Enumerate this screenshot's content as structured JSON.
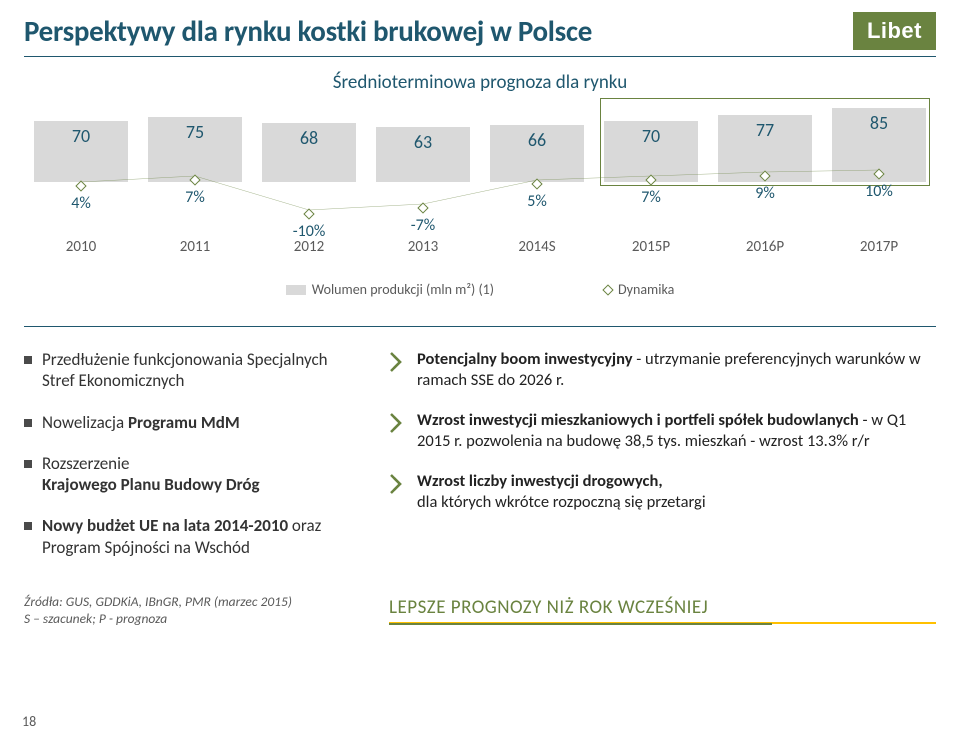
{
  "header": {
    "title": "Perspektywy dla rynku kostki brukowej w Polsce",
    "logo_text": "Libet",
    "logo_bg": "#6a8340",
    "logo_fg": "#ffffff"
  },
  "chart": {
    "subtitle": "Średnioterminowa prognoza dla rynku",
    "type": "bar+line",
    "years": [
      "2010",
      "2011",
      "2012",
      "2013",
      "2014S",
      "2015P",
      "2016P",
      "2017P"
    ],
    "bar_values": [
      70,
      75,
      68,
      63,
      66,
      70,
      77,
      85
    ],
    "bar_max": 85,
    "bar_color": "#d9d9d9",
    "bar_label_color": "#1f576e",
    "bar_label_fontsize": 18,
    "line_values_pct": [
      "4%",
      "7%",
      "-10%",
      "-7%",
      "5%",
      "7%",
      "9%",
      "10%"
    ],
    "line_y_raw": [
      4,
      7,
      -10,
      -7,
      5,
      7,
      9,
      10
    ],
    "line_y_min": -10,
    "line_y_max": 10,
    "line_color": "#6a8340",
    "box_highlight_color": "#6a8340",
    "legend": {
      "series1": "Wolumen produkcji (mln m²) (1)",
      "series2": "Dynamika"
    },
    "year_fontsize": 15,
    "year_color": "#5a5a5a"
  },
  "left_bullets": [
    {
      "text": "Przedłużenie funkcjonowania Specjalnych Stref Ekonomicznych"
    },
    {
      "prefix": "Nowelizacja ",
      "bold": "Programu MdM"
    },
    {
      "prefix": "Rozszerzenie\n",
      "bold": "Krajowego Planu Budowy Dróg"
    },
    {
      "bold": "Nowy budżet UE na lata 2014-2010",
      "suffix": " oraz Program Spójności na Wschód"
    }
  ],
  "right_bullets": [
    {
      "bold": "Potencjalny boom inwestycyjny",
      "suffix": " - utrzymanie preferencyjnych warunków w ramach SSE do 2026 r."
    },
    {
      "bold": "Wzrost inwestycji mieszkaniowych i portfeli spółek budowlanych",
      "suffix": " - w Q1 2015 r. pozwolenia na budowę 38,5 tys. mieszkań - wzrost 13.3% r/r"
    },
    {
      "bold": "Wzrost liczby inwestycji drogowych,",
      "suffix": "\ndla których wkrótce rozpoczną się przetargi"
    }
  ],
  "chevron_color": "#6a8340",
  "source": {
    "line1": "Źródła: GUS, GDDKiA, IBnGR, PMR (marzec 2015)",
    "line2": "S – szacunek; P - prognoza"
  },
  "highlight_text": "LEPSZE PROGNOZY NIŻ ROK WCZEŚNIEJ",
  "highlight_color": "#6a8340",
  "page_number": "18",
  "colors": {
    "accent_blue": "#1f576e",
    "accent_green": "#6a8340",
    "bar_grey": "#d9d9d9",
    "text_grey": "#5a5a5a",
    "yellow": "#ffc000"
  }
}
